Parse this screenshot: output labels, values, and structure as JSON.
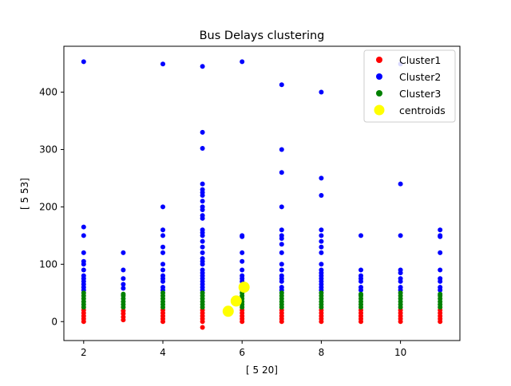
{
  "chart_data": {
    "type": "scatter",
    "title": "Bus Delays clustering",
    "xlabel": "[ 5 20]",
    "ylabel": "[ 5 53]",
    "xlim": [
      1.5,
      11.5
    ],
    "ylim": [
      -33,
      480
    ],
    "xticks": [
      2,
      4,
      6,
      8,
      10
    ],
    "yticks": [
      0,
      100,
      200,
      300,
      400
    ],
    "grid": false,
    "legend_position": "top-right",
    "series": [
      {
        "name": "Cluster1",
        "color": "#ff0000",
        "marker_size": 6,
        "points": [
          [
            2,
            0
          ],
          [
            2,
            5
          ],
          [
            2,
            10
          ],
          [
            2,
            15
          ],
          [
            2,
            20
          ],
          [
            3,
            3
          ],
          [
            3,
            8
          ],
          [
            3,
            14
          ],
          [
            3,
            19
          ],
          [
            4,
            0
          ],
          [
            4,
            5
          ],
          [
            4,
            10
          ],
          [
            4,
            15
          ],
          [
            4,
            20
          ],
          [
            5,
            -10
          ],
          [
            5,
            0
          ],
          [
            5,
            5
          ],
          [
            5,
            10
          ],
          [
            5,
            15
          ],
          [
            5,
            20
          ],
          [
            6,
            0
          ],
          [
            6,
            5
          ],
          [
            6,
            10
          ],
          [
            6,
            15
          ],
          [
            6,
            20
          ],
          [
            7,
            0
          ],
          [
            7,
            5
          ],
          [
            7,
            10
          ],
          [
            7,
            15
          ],
          [
            7,
            20
          ],
          [
            8,
            0
          ],
          [
            8,
            5
          ],
          [
            8,
            10
          ],
          [
            8,
            15
          ],
          [
            8,
            20
          ],
          [
            9,
            0
          ],
          [
            9,
            5
          ],
          [
            9,
            10
          ],
          [
            9,
            15
          ],
          [
            9,
            20
          ],
          [
            10,
            0
          ],
          [
            10,
            5
          ],
          [
            10,
            10
          ],
          [
            10,
            15
          ],
          [
            10,
            20
          ],
          [
            11,
            0
          ],
          [
            11,
            5
          ],
          [
            11,
            10
          ],
          [
            11,
            15
          ],
          [
            11,
            20
          ]
        ]
      },
      {
        "name": "Cluster2",
        "color": "#0000ff",
        "marker_size": 6,
        "points": [
          [
            2,
            453
          ],
          [
            2,
            165
          ],
          [
            2,
            150
          ],
          [
            2,
            120
          ],
          [
            2,
            105
          ],
          [
            2,
            100
          ],
          [
            2,
            90
          ],
          [
            2,
            80
          ],
          [
            2,
            75
          ],
          [
            2,
            70
          ],
          [
            2,
            65
          ],
          [
            2,
            60
          ],
          [
            2,
            55
          ],
          [
            3,
            120
          ],
          [
            3,
            90
          ],
          [
            3,
            75
          ],
          [
            3,
            65
          ],
          [
            3,
            58
          ],
          [
            4,
            449
          ],
          [
            4,
            200
          ],
          [
            4,
            160
          ],
          [
            4,
            150
          ],
          [
            4,
            130
          ],
          [
            4,
            120
          ],
          [
            4,
            100
          ],
          [
            4,
            90
          ],
          [
            4,
            80
          ],
          [
            4,
            75
          ],
          [
            4,
            70
          ],
          [
            4,
            60
          ],
          [
            4,
            55
          ],
          [
            5,
            445
          ],
          [
            5,
            330
          ],
          [
            5,
            302
          ],
          [
            5,
            240
          ],
          [
            5,
            230
          ],
          [
            5,
            225
          ],
          [
            5,
            220
          ],
          [
            5,
            210
          ],
          [
            5,
            200
          ],
          [
            5,
            195
          ],
          [
            5,
            185
          ],
          [
            5,
            180
          ],
          [
            5,
            160
          ],
          [
            5,
            155
          ],
          [
            5,
            150
          ],
          [
            5,
            140
          ],
          [
            5,
            130
          ],
          [
            5,
            120
          ],
          [
            5,
            110
          ],
          [
            5,
            105
          ],
          [
            5,
            100
          ],
          [
            5,
            90
          ],
          [
            5,
            85
          ],
          [
            5,
            80
          ],
          [
            5,
            75
          ],
          [
            5,
            70
          ],
          [
            5,
            65
          ],
          [
            5,
            60
          ],
          [
            5,
            55
          ],
          [
            6,
            453
          ],
          [
            6,
            150
          ],
          [
            6,
            148
          ],
          [
            6,
            120
          ],
          [
            6,
            105
          ],
          [
            6,
            90
          ],
          [
            6,
            80
          ],
          [
            6,
            75
          ],
          [
            6,
            70
          ],
          [
            6,
            60
          ],
          [
            6,
            55
          ],
          [
            7,
            413
          ],
          [
            7,
            300
          ],
          [
            7,
            260
          ],
          [
            7,
            200
          ],
          [
            7,
            160
          ],
          [
            7,
            150
          ],
          [
            7,
            145
          ],
          [
            7,
            135
          ],
          [
            7,
            120
          ],
          [
            7,
            100
          ],
          [
            7,
            90
          ],
          [
            7,
            80
          ],
          [
            7,
            75
          ],
          [
            7,
            70
          ],
          [
            7,
            60
          ],
          [
            7,
            55
          ],
          [
            8,
            400
          ],
          [
            8,
            250
          ],
          [
            8,
            220
          ],
          [
            8,
            160
          ],
          [
            8,
            150
          ],
          [
            8,
            140
          ],
          [
            8,
            130
          ],
          [
            8,
            120
          ],
          [
            8,
            100
          ],
          [
            8,
            90
          ],
          [
            8,
            85
          ],
          [
            8,
            80
          ],
          [
            8,
            75
          ],
          [
            8,
            70
          ],
          [
            8,
            65
          ],
          [
            8,
            60
          ],
          [
            8,
            55
          ],
          [
            9,
            150
          ],
          [
            9,
            90
          ],
          [
            9,
            80
          ],
          [
            9,
            75
          ],
          [
            9,
            70
          ],
          [
            9,
            60
          ],
          [
            9,
            55
          ],
          [
            10,
            449
          ],
          [
            10,
            240
          ],
          [
            10,
            150
          ],
          [
            10,
            90
          ],
          [
            10,
            85
          ],
          [
            10,
            75
          ],
          [
            10,
            70
          ],
          [
            10,
            60
          ],
          [
            10,
            55
          ],
          [
            11,
            160
          ],
          [
            11,
            150
          ],
          [
            11,
            148
          ],
          [
            11,
            120
          ],
          [
            11,
            90
          ],
          [
            11,
            75
          ],
          [
            11,
            70
          ],
          [
            11,
            60
          ],
          [
            11,
            55
          ]
        ]
      },
      {
        "name": "Cluster3",
        "color": "#008000",
        "marker_size": 6,
        "points": [
          [
            2,
            25
          ],
          [
            2,
            30
          ],
          [
            2,
            35
          ],
          [
            2,
            40
          ],
          [
            2,
            45
          ],
          [
            2,
            50
          ],
          [
            3,
            25
          ],
          [
            3,
            30
          ],
          [
            3,
            35
          ],
          [
            3,
            40
          ],
          [
            3,
            45
          ],
          [
            3,
            48
          ],
          [
            4,
            25
          ],
          [
            4,
            30
          ],
          [
            4,
            35
          ],
          [
            4,
            40
          ],
          [
            4,
            45
          ],
          [
            4,
            50
          ],
          [
            5,
            25
          ],
          [
            5,
            30
          ],
          [
            5,
            35
          ],
          [
            5,
            40
          ],
          [
            5,
            45
          ],
          [
            5,
            50
          ],
          [
            6,
            25
          ],
          [
            6,
            30
          ],
          [
            6,
            35
          ],
          [
            6,
            40
          ],
          [
            6,
            45
          ],
          [
            6,
            50
          ],
          [
            7,
            25
          ],
          [
            7,
            30
          ],
          [
            7,
            35
          ],
          [
            7,
            40
          ],
          [
            7,
            45
          ],
          [
            7,
            50
          ],
          [
            8,
            25
          ],
          [
            8,
            30
          ],
          [
            8,
            35
          ],
          [
            8,
            40
          ],
          [
            8,
            45
          ],
          [
            8,
            50
          ],
          [
            9,
            25
          ],
          [
            9,
            30
          ],
          [
            9,
            35
          ],
          [
            9,
            40
          ],
          [
            9,
            45
          ],
          [
            9,
            48
          ],
          [
            10,
            25
          ],
          [
            10,
            30
          ],
          [
            10,
            35
          ],
          [
            10,
            40
          ],
          [
            10,
            45
          ],
          [
            10,
            50
          ],
          [
            11,
            25
          ],
          [
            11,
            30
          ],
          [
            11,
            35
          ],
          [
            11,
            40
          ],
          [
            11,
            45
          ],
          [
            11,
            48
          ]
        ]
      },
      {
        "name": "centroids",
        "color": "#ffff00",
        "marker_size": 14,
        "points": [
          [
            5.65,
            18
          ],
          [
            5.85,
            36
          ],
          [
            6.05,
            60
          ]
        ]
      }
    ]
  }
}
